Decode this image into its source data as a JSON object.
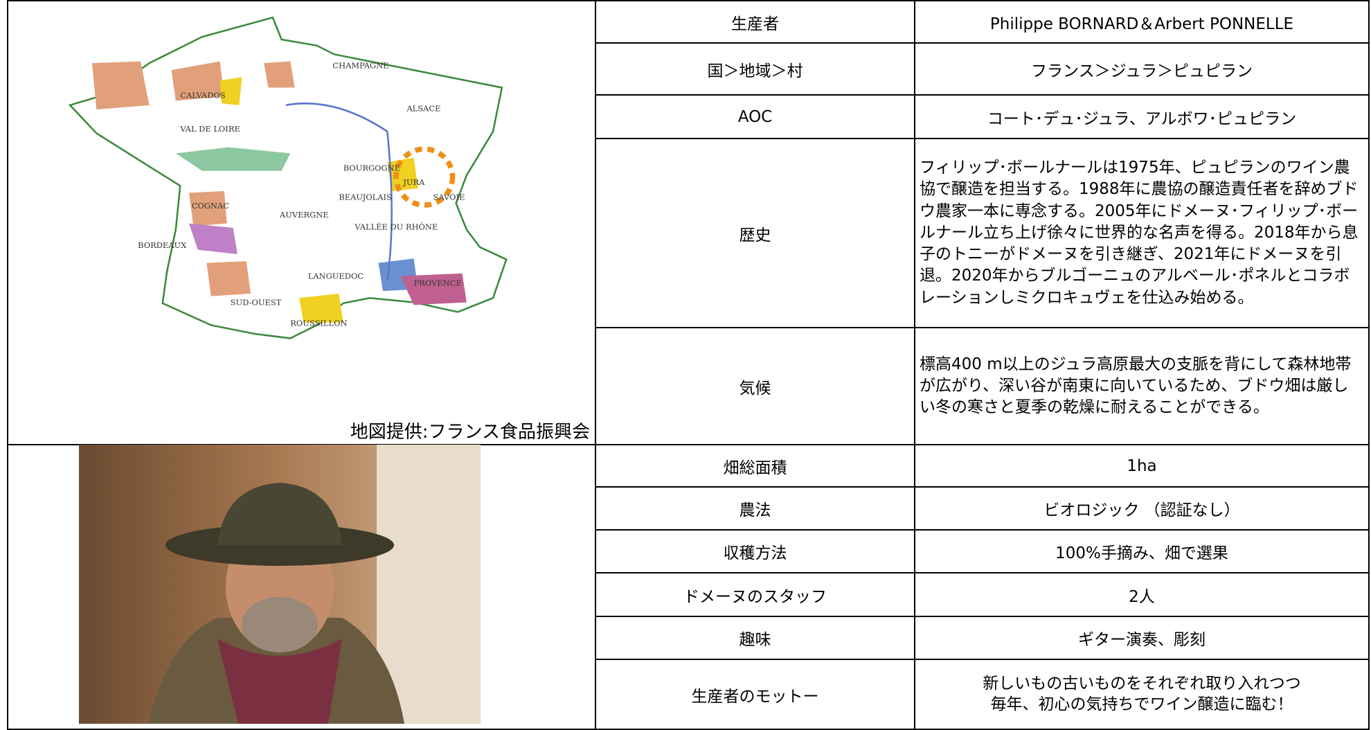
{
  "map": {
    "caption": "地図提供:フランス食品振興会",
    "labels": [
      "CALVADOS",
      "CHAMPAGNE",
      "ALSACE",
      "VAL DE LOIRE",
      "BOURGOGNE",
      "JURA",
      "SAVOIE",
      "BEAUJOLAIS",
      "COGNAC",
      "AUVERGNE",
      "VALLÉE DU RHÔNE",
      "BORDEAUX",
      "LANGUEDOC",
      "PROVENCE",
      "SUD-OUEST",
      "ROUSSILLON"
    ]
  },
  "table": {
    "rows": [
      [
        "生産者",
        "Philippe BORNARD＆Arbert PONNELLE"
      ],
      [
        "国＞地域＞村",
        "フランス＞ジュラ＞ピュピラン"
      ],
      [
        "AOC",
        "コート･デュ･ジュラ、アルボワ･ピュピラン"
      ],
      [
        "歴史",
        "フィリップ･ボールナールは1975年、ピュピランのワイン農協で醸造を担当する。1988年に農協の醸造責任者を辞めブドウ農家一本に専念する。2005年にドメーヌ･フィリップ･ボールナール立ち上げ徐々に世界的な名声を得る。2018年から息子のトニーがドメーヌを引き継ぎ、2021年にドメーヌを引退。2020年からブルゴーニュのアルベール･ポネルとコラボレーションしミクロキュヴェを仕込み始める。"
      ],
      [
        "気候",
        "標高400 m以上のジュラ高原最大の支脈を背にして森林地帯が広がり、深い谷が南東に向いているため、ブドウ畑は厳しい冬の寒さと夏季の乾燥に耐えることができる。"
      ],
      [
        "畑総面積",
        "1ha"
      ],
      [
        "農法",
        "ビオロジック （認証なし）"
      ],
      [
        "収穫方法",
        "100%手摘み、畑で選果"
      ],
      [
        "ドメーヌのスタッフ",
        "2人"
      ],
      [
        "趣味",
        "ギター演奏、彫刻"
      ],
      [
        "生産者のモットー",
        "新しいもの古いものをそれぞれ取り入れつつ\n毎年、初心の気持ちでワイン醸造に臨む！"
      ]
    ]
  }
}
